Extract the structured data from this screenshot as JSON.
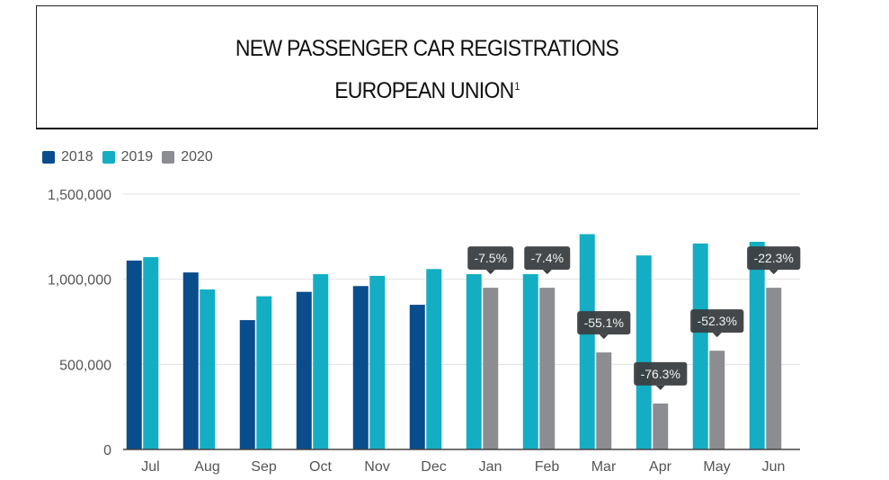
{
  "title": {
    "line1": "NEW PASSENGER CAR REGISTRATIONS",
    "line2": "EUROPEAN UNION",
    "footnote_marker": "1"
  },
  "colors": {
    "2018": "#0a4d8c",
    "2019": "#14aec4",
    "2020": "#8b8d90",
    "tooltip_bg": "#3b3e40",
    "tooltip_text": "#f2f2f2",
    "gridline": "#e3e3e3",
    "baseline": "#444444"
  },
  "chart_data": {
    "type": "bar",
    "title": "NEW PASSENGER CAR REGISTRATIONS EUROPEAN UNION",
    "xlabel": "",
    "ylabel": "",
    "ylim": [
      0,
      1500000
    ],
    "yticks": [
      0,
      500000,
      1000000,
      1500000
    ],
    "ytick_labels": [
      "0",
      "500,000",
      "1,000,000",
      "1,500,000"
    ],
    "grid": true,
    "legend_position": "top-left",
    "categories": [
      "Jul",
      "Aug",
      "Sep",
      "Oct",
      "Nov",
      "Dec",
      "Jan",
      "Feb",
      "Mar",
      "Apr",
      "May",
      "Jun"
    ],
    "series": [
      {
        "name": "2018",
        "values": [
          1110000,
          1040000,
          760000,
          926000,
          960000,
          850000,
          null,
          null,
          null,
          null,
          null,
          null
        ]
      },
      {
        "name": "2019",
        "values": [
          1130000,
          940000,
          900000,
          1030000,
          1020000,
          1060000,
          1030000,
          1030000,
          1265000,
          1140000,
          1210000,
          1220000
        ]
      },
      {
        "name": "2020",
        "values": [
          null,
          null,
          null,
          null,
          null,
          null,
          950000,
          950000,
          570000,
          270000,
          580000,
          950000
        ]
      }
    ],
    "annotations": [
      {
        "category": "Jan",
        "series": "2020",
        "text": "-7.5%"
      },
      {
        "category": "Feb",
        "series": "2020",
        "text": "-7.4%"
      },
      {
        "category": "Mar",
        "series": "2020",
        "text": "-55.1%"
      },
      {
        "category": "Apr",
        "series": "2020",
        "text": "-76.3%"
      },
      {
        "category": "May",
        "series": "2020",
        "text": "-52.3%"
      },
      {
        "category": "Jun",
        "series": "2020",
        "text": "-22.3%"
      }
    ]
  }
}
